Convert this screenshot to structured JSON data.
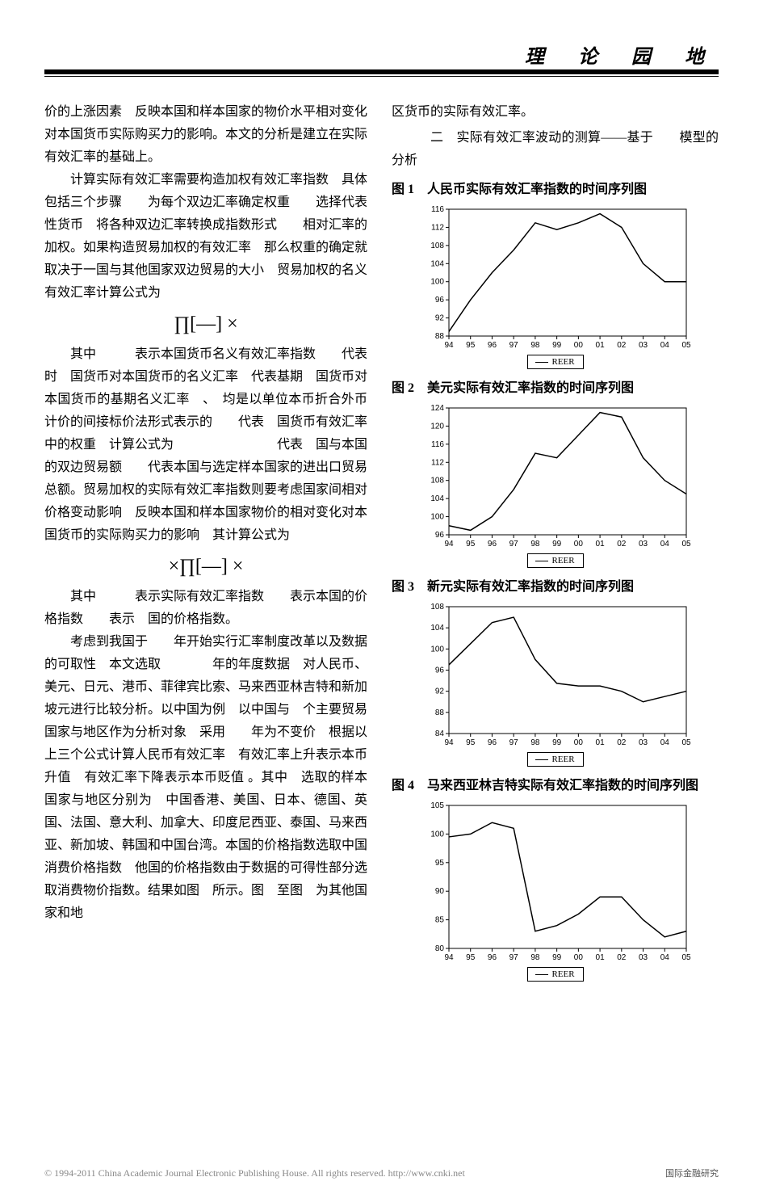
{
  "header": {
    "title": "理 论 园 地"
  },
  "left": {
    "p1": "价的上涨因素　反映本国和样本国家的物价水平相对变化对本国货币实际购买力的影响。本文的分析是建立在实际有效汇率的基础上。",
    "p2": "计算实际有效汇率需要构造加权有效汇率指数　具体包括三个步骤　　为每个双边汇率确定权重　　选择代表性货币　将各种双边汇率转换成指数形式　　相对汇率的加权。如果构造贸易加权的有效汇率　那么权重的确定就取决于一国与其他国家双边贸易的大小　贸易加权的名义有效汇率计算公式为",
    "f1": "∏[—] ×",
    "p3": "其中　　　表示本国货币名义有效汇率指数　　代表　时　国货币对本国货币的名义汇率　代表基期　国货币对本国货币的基期名义汇率　、　均是以单位本币折合外币计价的间接标价法形式表示的　　代表　国货币有效汇率中的权重　计算公式为　　　　　　　　代表　国与本国的双边贸易额　　代表本国与选定样本国家的进出口贸易总额。贸易加权的实际有效汇率指数则要考虑国家间相对价格变动影响　反映本国和样本国家物价的相对变化对本国货币的实际购买力的影响　其计算公式为",
    "f2": "×∏[—] ×",
    "p4": "其中　　　表示实际有效汇率指数　　表示本国的价格指数　　表示　国的价格指数。",
    "p5": "考虑到我国于　　年开始实行汇率制度改革以及数据的可取性　本文选取　　　　年的年度数据　对人民币、美元、日元、港币、菲律宾比索、马来西亚林吉特和新加坡元进行比较分析。以中国为例　以中国与　个主要贸易国家与地区作为分析对象　采用　　年为不变价　根据以上三个公式计算人民币有效汇率　有效汇率上升表示本币升值　有效汇率下降表示本币贬值 。其中　选取的样本国家与地区分别为　中国香港、美国、日本、德国、英国、法国、意大利、加拿大、印度尼西亚、泰国、马来西亚、新加坡、韩国和中国台湾。本国的价格指数选取中国消费价格指数　他国的价格指数由于数据的可得性部分选取消费物价指数。结果如图　所示。图　至图　为其他国家和地"
  },
  "right": {
    "p1": "区货币的实际有效汇率。",
    "sec": "二　实际有效汇率波动的测算——基于　　模型的分析",
    "legend": "REER"
  },
  "charts": [
    {
      "label": "图 1",
      "title": "人民币实际有效汇率指数的时间序列图",
      "x": [
        "94",
        "95",
        "96",
        "97",
        "98",
        "99",
        "00",
        "01",
        "02",
        "03",
        "04",
        "05"
      ],
      "y": [
        89,
        96,
        102,
        107,
        113,
        111.5,
        113,
        115,
        112,
        104,
        100,
        100
      ],
      "ymin": 88,
      "ymax": 116,
      "ystep": 4,
      "line_color": "#000000",
      "bg": "#ffffff",
      "axis_fontsize": 10
    },
    {
      "label": "图 2",
      "title": "美元实际有效汇率指数的时间序列图",
      "x": [
        "94",
        "95",
        "96",
        "97",
        "98",
        "99",
        "00",
        "01",
        "02",
        "03",
        "04",
        "05"
      ],
      "y": [
        98,
        97,
        100,
        106,
        114,
        113,
        118,
        123,
        122,
        113,
        108,
        105
      ],
      "ymin": 96,
      "ymax": 124,
      "ystep": 4,
      "line_color": "#000000",
      "bg": "#ffffff",
      "axis_fontsize": 10
    },
    {
      "label": "图 3",
      "title": "新元实际有效汇率指数的时间序列图",
      "x": [
        "94",
        "95",
        "96",
        "97",
        "98",
        "99",
        "00",
        "01",
        "02",
        "03",
        "04",
        "05"
      ],
      "y": [
        97,
        101,
        105,
        106,
        98,
        93.5,
        93,
        93,
        92,
        90,
        91,
        92
      ],
      "ymin": 84,
      "ymax": 108,
      "ystep": 4,
      "line_color": "#000000",
      "bg": "#ffffff",
      "axis_fontsize": 10
    },
    {
      "label": "图 4",
      "title": "马来西亚林吉特实际有效汇率指数的时间序列图",
      "x": [
        "94",
        "95",
        "96",
        "97",
        "98",
        "99",
        "00",
        "01",
        "02",
        "03",
        "04",
        "05"
      ],
      "y": [
        99.5,
        100,
        102,
        101,
        83,
        84,
        86,
        89,
        89,
        85,
        82,
        83
      ],
      "ymin": 80,
      "ymax": 105,
      "ystep": 5,
      "line_color": "#000000",
      "bg": "#ffffff",
      "axis_fontsize": 10
    }
  ],
  "footer": {
    "left": "© 1994-2011 China Academic Journal Electronic Publishing House. All rights reserved.   http://www.cnki.net",
    "right1": "国际金融研究",
    "right2": ""
  }
}
